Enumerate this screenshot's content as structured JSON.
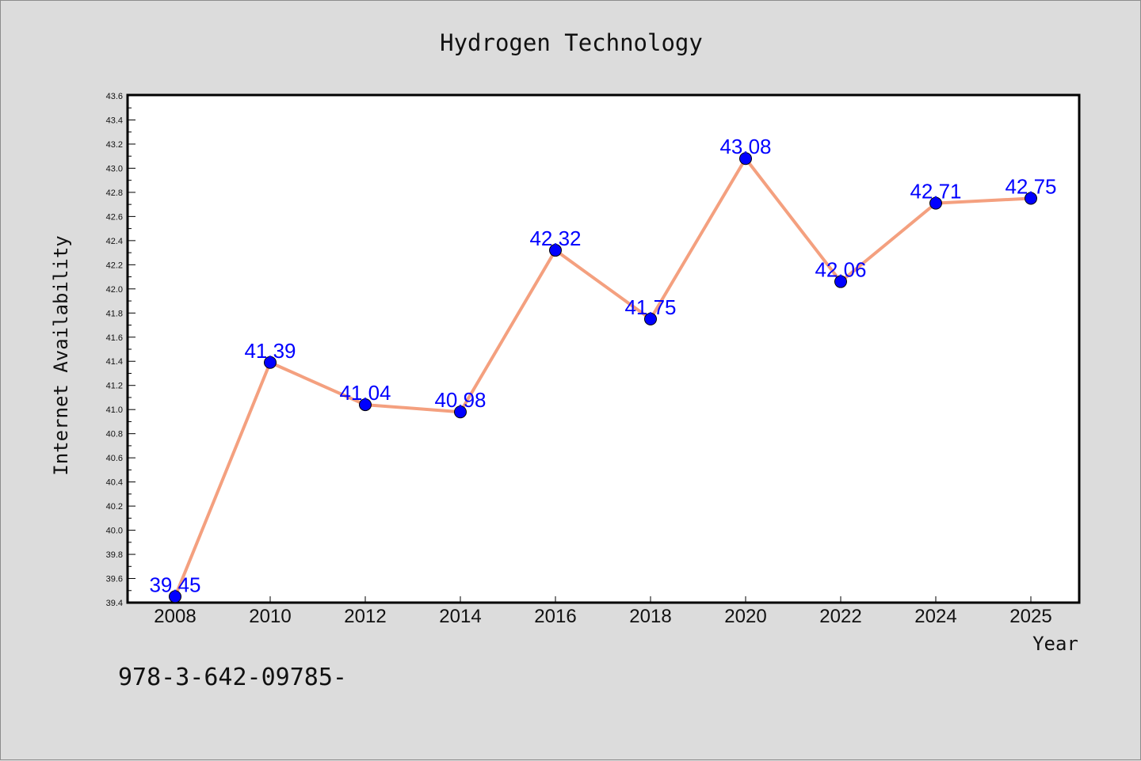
{
  "chart_data": {
    "type": "line",
    "title": "Hydrogen Technology",
    "xlabel": "Year",
    "ylabel": "Internet Availability",
    "categories": [
      "2008",
      "2010",
      "2012",
      "2014",
      "2016",
      "2018",
      "2020",
      "2022",
      "2024",
      "2025"
    ],
    "values": [
      39.45,
      41.39,
      41.04,
      40.98,
      42.32,
      41.75,
      43.08,
      42.06,
      42.71,
      42.75
    ],
    "data_labels": [
      "39.45",
      "41.39",
      "41.04",
      "40.98",
      "42.32",
      "41.75",
      "43.08",
      "42.06",
      "42.71",
      "42.75"
    ],
    "ylim": [
      39.4,
      43.6
    ],
    "yticks": [
      "39.4",
      "39.6",
      "39.8",
      "40.0",
      "40.2",
      "40.4",
      "40.6",
      "40.8",
      "41.0",
      "41.2",
      "41.4",
      "41.6",
      "41.8",
      "42.0",
      "42.2",
      "42.4",
      "42.6",
      "42.8",
      "43.0",
      "43.2",
      "43.4",
      "43.6"
    ],
    "grid": false,
    "legend": "none",
    "line_color": "#f4a07f",
    "marker_color": "#0000ff",
    "label_color": "#0000ff"
  },
  "footer_text": "978-3-642-09785-"
}
